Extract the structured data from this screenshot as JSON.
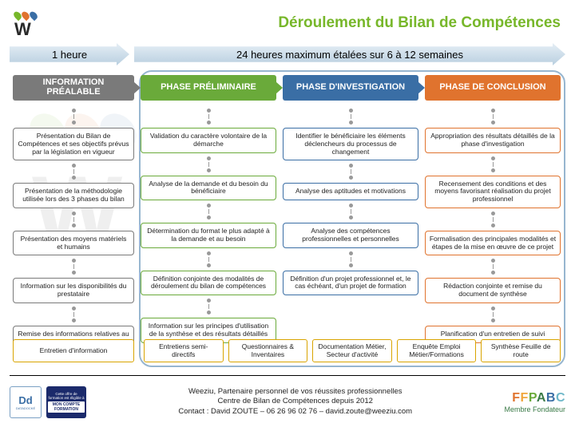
{
  "colors": {
    "title": "#77b72a",
    "arrow_grad_top": "#e5eef5",
    "arrow_grad_bot": "#b9cfe0",
    "group_border": "#97b6d0",
    "tool_border": "#d9a400",
    "connector": "#999999",
    "phases": {
      "info": {
        "header": "#7a7a7a",
        "border": "#7a7a7a"
      },
      "prelim": {
        "header": "#6aaa3a",
        "border": "#6aaa3a"
      },
      "invest": {
        "header": "#3a6ea5",
        "border": "#3a6ea5"
      },
      "concl": {
        "header": "#e0732e",
        "border": "#e0732e"
      }
    },
    "ffpabc": {
      "F1": "#e0732e",
      "F2": "#f0a63c",
      "P": "#6aaa3a",
      "A": "#3a7a47",
      "B": "#3a6ea5",
      "C": "#6fb8c9"
    }
  },
  "title": "Déroulement du Bilan de Compétences",
  "arrows": {
    "left": "1 heure",
    "right": "24 heures maximum étalées sur 6 à 12 semaines"
  },
  "phases": [
    {
      "key": "info",
      "header": "INFORMATION PRÉALABLE",
      "steps": [
        "Présentation du Bilan de Compétences et ses objectifs prévus par la législation en vigueur",
        "Présentation de la méthodologie utilisée lors des 3 phases du bilan",
        "Présentation des moyens matériels et humains",
        "Information sur les disponibilités du prestataire",
        "Remise des informations relatives au Bilan de Compétences"
      ]
    },
    {
      "key": "prelim",
      "header": "PHASE PRÉLIMINAIRE",
      "steps": [
        "Validation du caractère volontaire de la démarche",
        "Analyse de la demande et du besoin du bénéficiaire",
        "Détermination du format le plus adapté à la demande et au besoin",
        "Définition conjointe des modalités de déroulement du bilan de compétences",
        "Information sur les principes d'utilisation de la synthèse et des résultats détaillés"
      ]
    },
    {
      "key": "invest",
      "header": "PHASE D'INVESTIGATION",
      "steps": [
        "Identifier le bénéficiaire les éléments déclencheurs du processus de changement",
        "Analyse des aptitudes et motivations",
        "Analyse des compétences professionnelles et personnelles",
        "Définition d'un projet professionnel et, le cas échéant, d'un projet de formation"
      ]
    },
    {
      "key": "concl",
      "header": "PHASE DE CONCLUSION",
      "steps": [
        "Appropriation des résultats détaillés de la phase d'investigation",
        "Recensement des conditions et des moyens favorisant réalisation du projet professionnel",
        "Formalisation des principales modalités et étapes de la mise en œuvre de ce projet",
        "Rédaction conjointe et remise du document de synthèse",
        "Planification d'un entretien de suivi"
      ]
    }
  ],
  "tools": [
    {
      "label": "Entretien d'information",
      "w": 100
    },
    {
      "label": "Entretiens semi-directifs",
      "w": 100
    },
    {
      "label": "Questionnaires & Inventaires",
      "w": 100
    },
    {
      "label": "Documentation Métier, Secteur d'activité",
      "w": 110
    },
    {
      "label": "Enquête Emploi Métier/Formations",
      "w": 100
    },
    {
      "label": "Synthèse Feuille de route",
      "w": 100
    }
  ],
  "footer": {
    "line1": "Weeziu, Partenaire personnel de vos réussites professionnelles",
    "line2": "Centre de Bilan de Compétences depuis 2012",
    "line3": "Contact : David ZOUTE – 06 26 96 02 76 – david.zoute@weeziu.com",
    "badge1": "Dd",
    "badge1_sub": "DATADOCKÉ",
    "badge2_top": "Cette offre de formation est éligible à",
    "badge2_main": "MON COMPTE FORMATION",
    "member": "Membre Fondateur",
    "org": "FFPABC"
  },
  "logo_drops": [
    "#77b72a",
    "#e0732e",
    "#3a6ea5"
  ]
}
